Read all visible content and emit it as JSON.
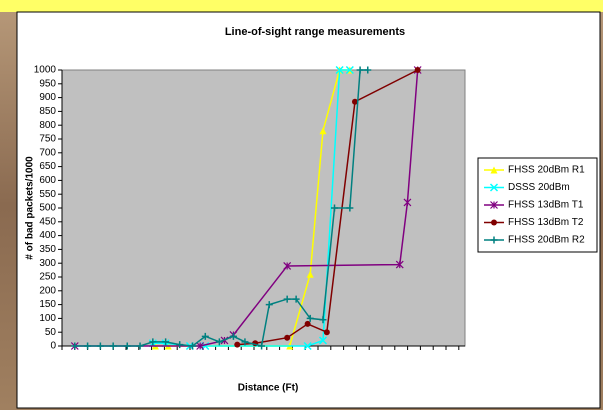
{
  "chart_data": {
    "type": "line",
    "title": "Line-of-sight range measurements",
    "x_label": "Distance (Ft)",
    "y_label": "# of bad packets/1000",
    "xlim": [
      0,
      31.5
    ],
    "ylim": [
      0,
      1000
    ],
    "yticks": [
      0,
      50,
      100,
      150,
      200,
      250,
      300,
      350,
      400,
      450,
      500,
      550,
      600,
      650,
      700,
      750,
      800,
      850,
      900,
      950,
      1000
    ],
    "grid": false,
    "legend": "right",
    "series": [
      {
        "name": "FHSS 20dBm R1",
        "color": "#ffff00",
        "marker": "triangle",
        "x": [
          7.3,
          8.3,
          17.8,
          19.4,
          20.4,
          21.7,
          22.5
        ],
        "values": [
          0,
          0,
          0,
          260,
          780,
          1000,
          1000
        ]
      },
      {
        "name": "DSSS 20dBm",
        "color": "#00ffff",
        "marker": "x",
        "x": [
          7.1,
          8.1,
          10.0,
          11.2,
          19.2,
          20.4,
          21.7,
          22.5
        ],
        "values": [
          10,
          10,
          0,
          0,
          0,
          20,
          1000,
          1000
        ]
      },
      {
        "name": "FHSS 13dBm T1",
        "color": "#800080",
        "marker": "star",
        "x": [
          1.0,
          10.8,
          12.7,
          13.4,
          17.6,
          26.4,
          27.0,
          27.8
        ],
        "values": [
          0,
          0,
          20,
          40,
          290,
          295,
          520,
          1000
        ]
      },
      {
        "name": "FHSS 13dBm T2",
        "color": "#800000",
        "marker": "circle",
        "x": [
          13.7,
          15.1,
          17.6,
          19.2,
          20.7,
          22.9,
          27.8
        ],
        "values": [
          5,
          10,
          30,
          80,
          50,
          885,
          1000
        ]
      },
      {
        "name": "FHSS 20dBm R2",
        "color": "#008080",
        "marker": "plus",
        "x": [
          1.0,
          2.0,
          3.0,
          4.0,
          5.1,
          6.1,
          7.1,
          8.1,
          9.2,
          10.2,
          11.2,
          12.3,
          13.4,
          14.3,
          15.6,
          16.2,
          17.6,
          18.3,
          19.4,
          20.4,
          21.3,
          22.5,
          23.3,
          23.9
        ],
        "values": [
          0,
          0,
          0,
          0,
          0,
          0,
          15,
          15,
          5,
          0,
          35,
          15,
          35,
          15,
          0,
          150,
          170,
          170,
          100,
          95,
          500,
          500,
          1000,
          1000
        ]
      }
    ]
  }
}
